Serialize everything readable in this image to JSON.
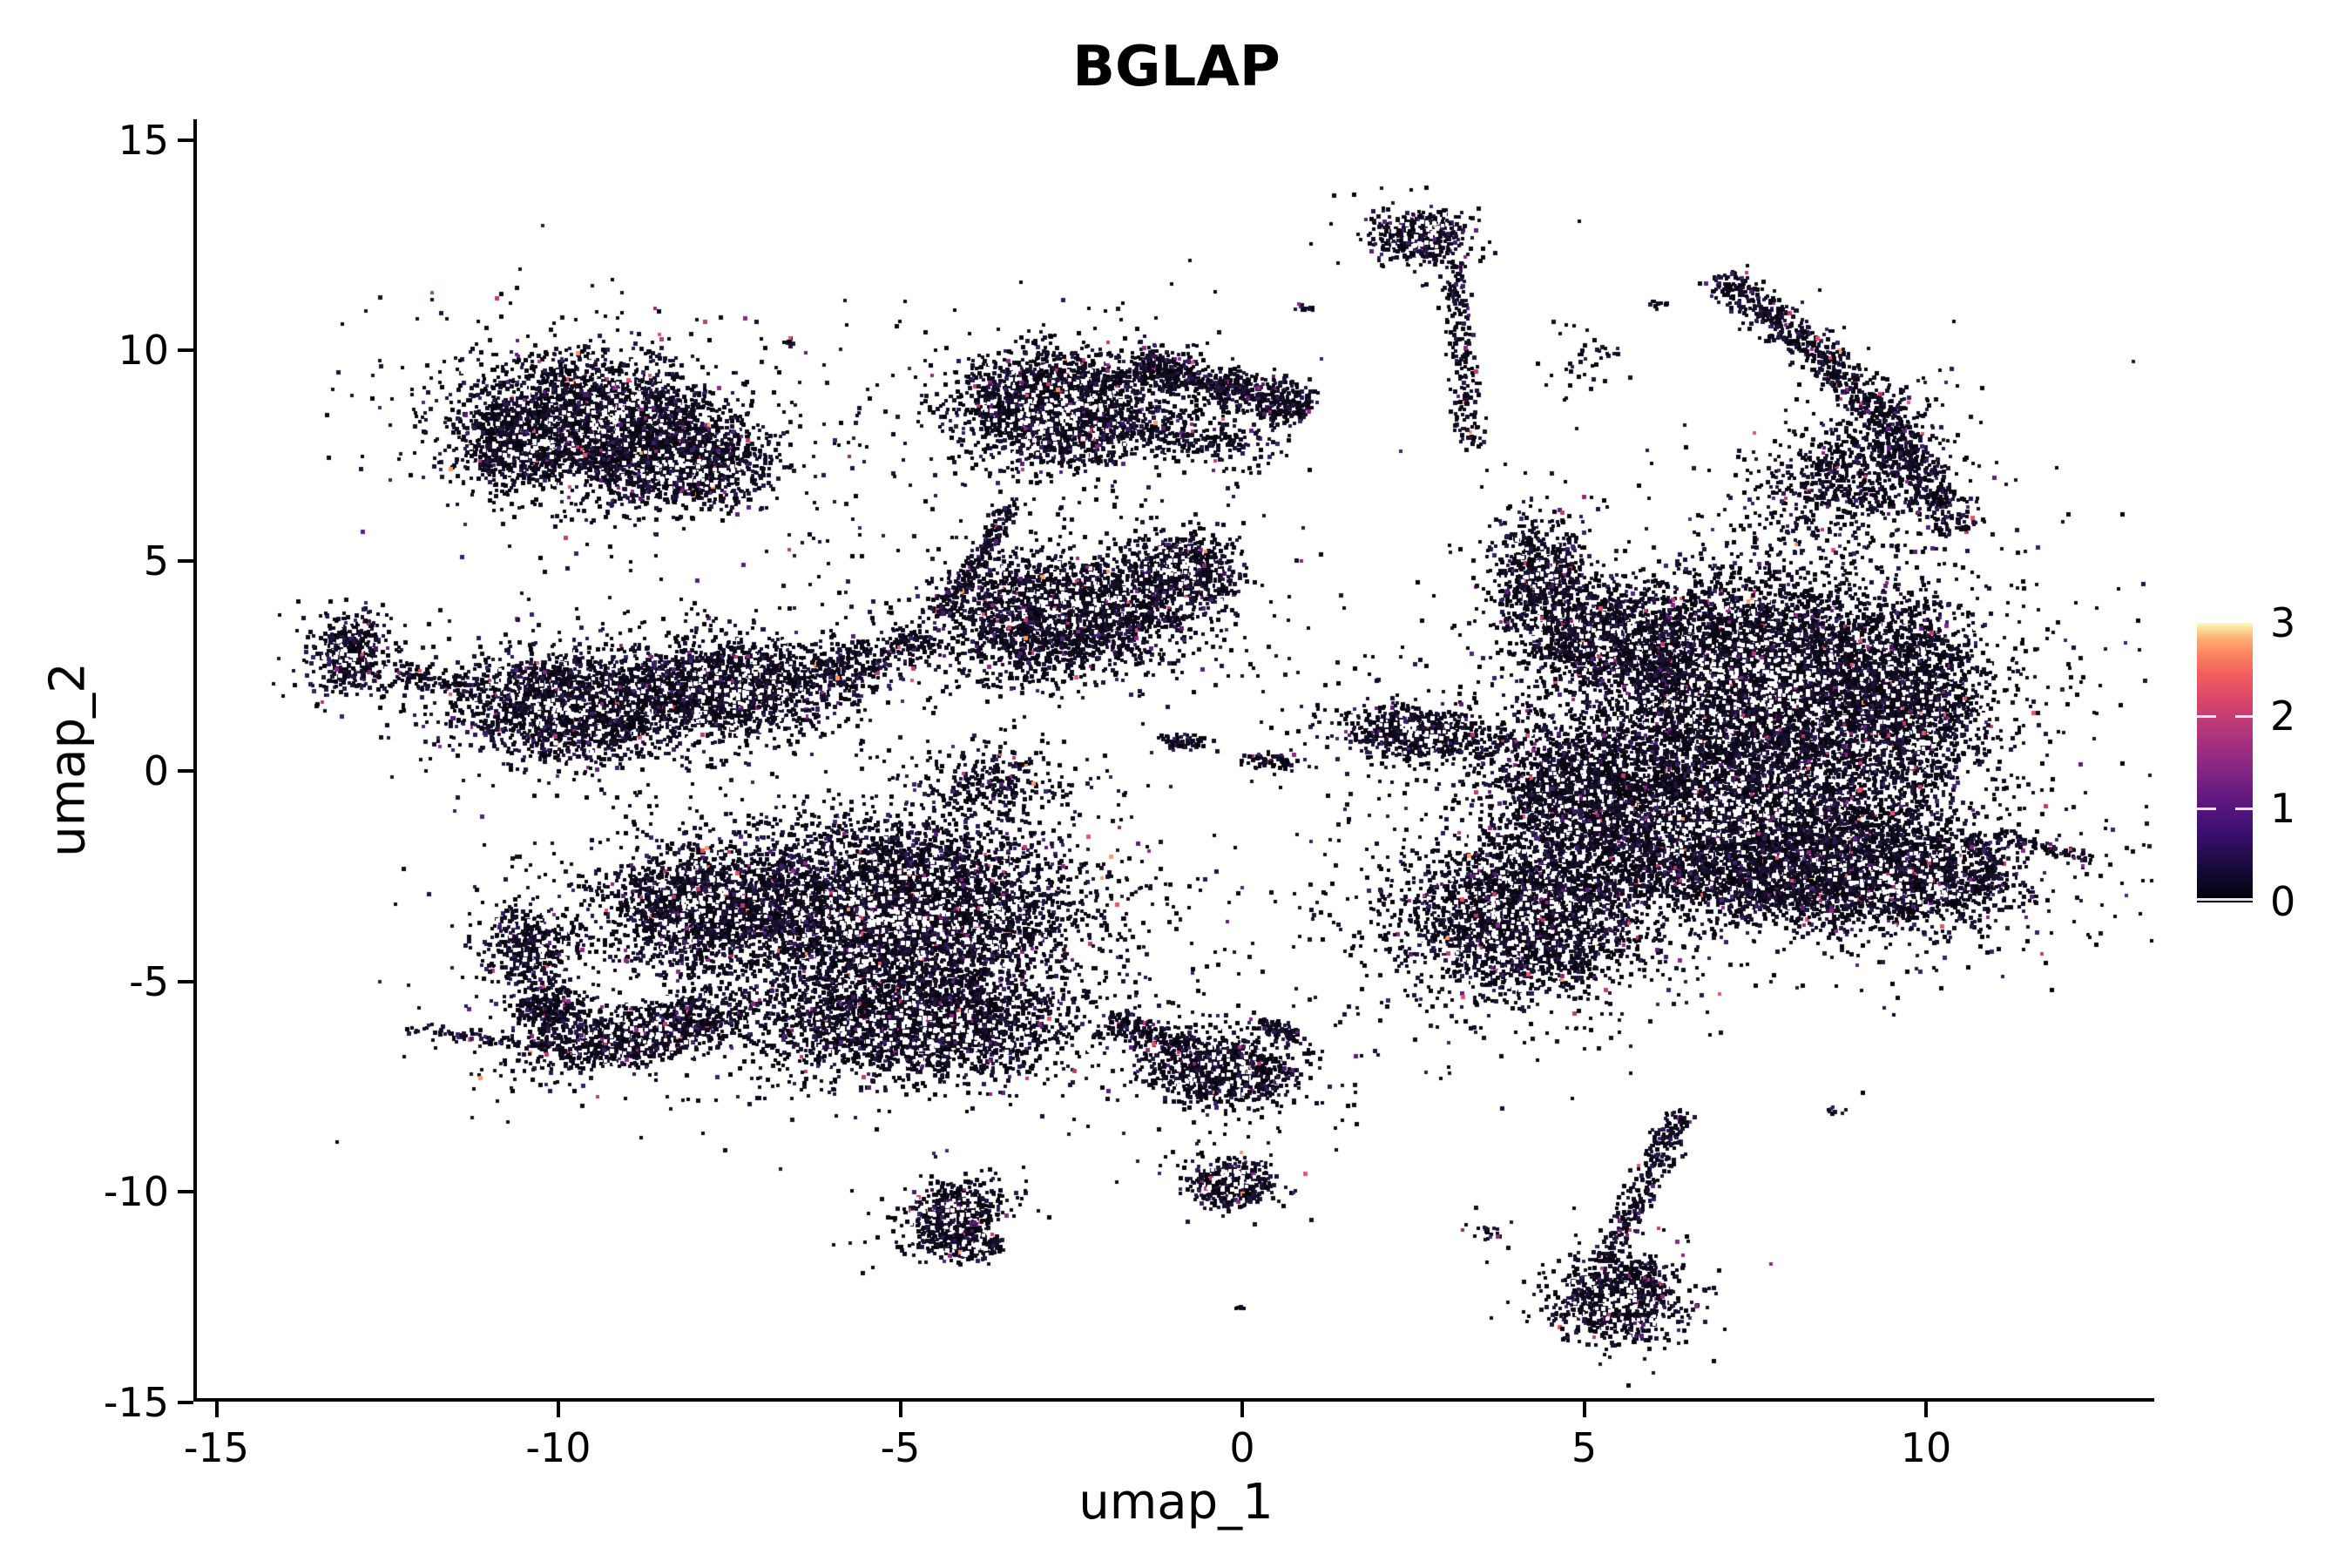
{
  "title": "BGLAP",
  "axes": {
    "xlabel": "umap_1",
    "ylabel": "umap_2",
    "x_ticks": [
      -15,
      -10,
      -5,
      0,
      5,
      10
    ],
    "y_ticks": [
      15,
      10,
      5,
      0,
      -5,
      -10,
      -15
    ]
  },
  "colorbar": {
    "tick_labels": [
      3,
      2,
      1,
      0
    ],
    "tick_mark_values": [
      0,
      1,
      2
    ],
    "gradient_stops": [
      {
        "v": 0.0,
        "c": "#000004"
      },
      {
        "v": 0.08,
        "c": "#0d0829"
      },
      {
        "v": 0.16,
        "c": "#210c4a"
      },
      {
        "v": 0.25,
        "c": "#3a0f70"
      },
      {
        "v": 0.34,
        "c": "#57157e"
      },
      {
        "v": 0.42,
        "c": "#721f81"
      },
      {
        "v": 0.5,
        "c": "#8c2981"
      },
      {
        "v": 0.58,
        "c": "#a8327d"
      },
      {
        "v": 0.66,
        "c": "#c43c75"
      },
      {
        "v": 0.74,
        "c": "#de4968"
      },
      {
        "v": 0.82,
        "c": "#f1605d"
      },
      {
        "v": 0.89,
        "c": "#fb8661"
      },
      {
        "v": 0.94,
        "c": "#fcab6f"
      },
      {
        "v": 0.98,
        "c": "#fcdf9c"
      },
      {
        "v": 1.0,
        "c": "#fcfdbf"
      }
    ]
  },
  "chart_data": {
    "type": "scatter",
    "title": "BGLAP",
    "xlabel": "umap_1",
    "ylabel": "umap_2",
    "xlim": [
      -15.5,
      13.3
    ],
    "ylim": [
      -15.1,
      15.5
    ],
    "x_ticks": [
      -15,
      -10,
      -5,
      0,
      5,
      10
    ],
    "y_ticks": [
      15,
      10,
      5,
      0,
      -5,
      -10,
      -15
    ],
    "grid": false,
    "legend_position": "right",
    "colorbar": {
      "label": "",
      "range": [
        0,
        3
      ],
      "tick_labels": [
        0,
        1,
        2,
        3
      ],
      "colormap": "magma"
    },
    "point_colors": [
      {
        "c": "#04020b",
        "w": 0.2
      },
      {
        "c": "#0a0614",
        "w": 0.2
      },
      {
        "c": "#0e0a1c",
        "w": 0.16
      },
      {
        "c": "#140e26",
        "w": 0.13
      },
      {
        "c": "#19112e",
        "w": 0.11
      },
      {
        "c": "#1f1538",
        "w": 0.08
      },
      {
        "c": "#2a1a4e",
        "w": 0.05
      },
      {
        "c": "#3a2166",
        "w": 0.03
      },
      {
        "c": "#55217a",
        "w": 0.018
      },
      {
        "c": "#8c2981",
        "w": 0.01
      },
      {
        "c": "#c03b6e",
        "w": 0.006
      },
      {
        "c": "#e4556a",
        "w": 0.004
      },
      {
        "c": "#fb9b62",
        "w": 0.002
      }
    ],
    "pinhole_ratio": 0.1,
    "halo": {
      "ratio": 0.13,
      "spread": 2.0,
      "min_n": 400
    },
    "clusters": [
      {
        "t": "g",
        "x": -9.4,
        "y": 8.35,
        "rx": 1.55,
        "ry": 1.25,
        "rot": -10,
        "n": 2600,
        "d": 1
      },
      {
        "t": "g",
        "x": -8.2,
        "y": 7.3,
        "rx": 1.05,
        "ry": 0.9,
        "rot": 0,
        "n": 1200,
        "d": 1
      },
      {
        "t": "g",
        "x": -10.55,
        "y": 7.7,
        "rx": 0.8,
        "ry": 0.8,
        "rot": 0,
        "n": 600,
        "d": 1
      },
      {
        "t": "g",
        "x": -2.7,
        "y": 8.6,
        "rx": 1.25,
        "ry": 1.15,
        "rot": 0,
        "n": 2200,
        "d": 1
      },
      {
        "t": "l",
        "x1": -1.6,
        "y1": 9.7,
        "x2": 0.95,
        "y2": 8.55,
        "w": 0.38,
        "n": 700
      },
      {
        "t": "g",
        "x": -0.6,
        "y": 7.9,
        "rx": 1.0,
        "ry": 0.5,
        "rot": -15,
        "n": 230,
        "d": 0
      },
      {
        "t": "g",
        "x": -2.6,
        "y": 3.9,
        "rx": 1.35,
        "ry": 1.0,
        "rot": -8,
        "n": 1800,
        "d": 1
      },
      {
        "t": "g",
        "x": -0.9,
        "y": 4.7,
        "rx": 0.7,
        "ry": 0.85,
        "rot": 0,
        "n": 700,
        "d": 1
      },
      {
        "t": "g",
        "x": -2.9,
        "y": 2.9,
        "rx": 1.7,
        "ry": 0.8,
        "rot": 0,
        "n": 480,
        "d": 0
      },
      {
        "t": "g",
        "x": -0.9,
        "y": 0.7,
        "rx": 0.35,
        "ry": 0.18,
        "rot": 0,
        "n": 70,
        "d": 0
      },
      {
        "t": "g",
        "x": 0.45,
        "y": 0.25,
        "rx": 0.4,
        "ry": 0.18,
        "rot": 0,
        "n": 60,
        "d": 0
      },
      {
        "t": "l",
        "x1": -4.4,
        "y1": 3.7,
        "x2": -3.3,
        "y2": 6.4,
        "w": 0.14,
        "n": 210
      },
      {
        "t": "g",
        "x": -13.0,
        "y": 2.75,
        "rx": 0.5,
        "ry": 0.8,
        "rot": 0,
        "n": 420,
        "d": 1
      },
      {
        "t": "l",
        "x1": -12.4,
        "y1": 2.3,
        "x2": -11.1,
        "y2": 1.95,
        "w": 0.22,
        "n": 110
      },
      {
        "t": "g",
        "x": -9.8,
        "y": 1.55,
        "rx": 1.35,
        "ry": 1.05,
        "rot": 0,
        "n": 1900,
        "d": 1
      },
      {
        "t": "g",
        "x": -7.55,
        "y": 1.95,
        "rx": 1.6,
        "ry": 1.0,
        "rot": 8,
        "n": 1700,
        "d": 1
      },
      {
        "t": "l",
        "x1": -6.1,
        "y1": 2.3,
        "x2": -4.6,
        "y2": 3.2,
        "w": 0.42,
        "n": 240
      },
      {
        "t": "g",
        "x": -5.1,
        "y": -3.4,
        "rx": 2.3,
        "ry": 1.8,
        "rot": 0,
        "n": 5200,
        "d": 1
      },
      {
        "t": "g",
        "x": -7.9,
        "y": -3.2,
        "rx": 1.25,
        "ry": 1.15,
        "rot": 0,
        "n": 1600,
        "d": 1
      },
      {
        "t": "g",
        "x": -8.7,
        "y": -6.2,
        "rx": 1.5,
        "ry": 0.6,
        "rot": 20,
        "n": 1100,
        "d": 1
      },
      {
        "t": "g",
        "x": -4.7,
        "y": -6.1,
        "rx": 1.9,
        "ry": 1.0,
        "rot": 0,
        "n": 2100,
        "d": 1
      },
      {
        "t": "g",
        "x": -10.4,
        "y": -4.2,
        "rx": 0.6,
        "ry": 0.8,
        "rot": 0,
        "n": 420,
        "d": 1
      },
      {
        "t": "g",
        "x": -10.1,
        "y": -5.7,
        "rx": 0.5,
        "ry": 0.55,
        "rot": 0,
        "n": 260,
        "d": 0
      },
      {
        "t": "l",
        "x1": -12.2,
        "y1": -6.15,
        "x2": -9.9,
        "y2": -6.6,
        "w": 0.12,
        "n": 100
      },
      {
        "t": "g",
        "x": -3.6,
        "y": -0.3,
        "rx": 1.0,
        "ry": 0.8,
        "rot": 0,
        "n": 280,
        "d": 0
      },
      {
        "t": "g",
        "x": -0.3,
        "y": -7.1,
        "rx": 0.95,
        "ry": 0.7,
        "rot": -12,
        "n": 900,
        "d": 1
      },
      {
        "t": "l",
        "x1": -1.9,
        "y1": -5.9,
        "x2": -0.8,
        "y2": -6.6,
        "w": 0.3,
        "n": 150
      },
      {
        "t": "l",
        "x1": 0.3,
        "y1": -6.0,
        "x2": 0.85,
        "y2": -6.35,
        "w": 0.2,
        "n": 80
      },
      {
        "t": "g",
        "x": -0.15,
        "y": -9.8,
        "rx": 0.5,
        "ry": 0.48,
        "rot": 0,
        "n": 430,
        "d": 1
      },
      {
        "t": "g",
        "x": 0.0,
        "y": -12.75,
        "rx": 0.1,
        "ry": 0.08,
        "rot": 0,
        "n": 6,
        "d": 0
      },
      {
        "t": "g",
        "x": -4.25,
        "y": -10.55,
        "rx": 0.55,
        "ry": 0.75,
        "rot": -35,
        "n": 500,
        "d": 1
      },
      {
        "t": "g",
        "x": -3.95,
        "y": -11.3,
        "rx": 0.35,
        "ry": 0.3,
        "rot": 0,
        "n": 250,
        "d": 1
      },
      {
        "t": "g",
        "x": 2.6,
        "y": 12.7,
        "rx": 0.55,
        "ry": 0.5,
        "rot": 0,
        "n": 520,
        "d": 1
      },
      {
        "t": "l",
        "x1": 3.1,
        "y1": 12.1,
        "x2": 3.35,
        "y2": 7.7,
        "w": 0.18,
        "n": 210
      },
      {
        "t": "g",
        "x": 6.1,
        "y": 11.1,
        "rx": 0.16,
        "ry": 0.1,
        "rot": 0,
        "n": 10,
        "d": 0
      },
      {
        "t": "g",
        "x": 5.0,
        "y": 9.7,
        "rx": 0.5,
        "ry": 0.8,
        "rot": 0,
        "n": 40,
        "d": 0
      },
      {
        "t": "l",
        "x1": 7.0,
        "y1": 11.8,
        "x2": 9.2,
        "y2": 8.8,
        "w": 0.32,
        "n": 500
      },
      {
        "t": "l",
        "x1": 9.2,
        "y1": 8.8,
        "x2": 10.5,
        "y2": 5.7,
        "w": 0.34,
        "n": 460
      },
      {
        "t": "g",
        "x": 8.9,
        "y": 7.0,
        "rx": 1.1,
        "ry": 1.7,
        "rot": -35,
        "n": 700,
        "d": 0
      },
      {
        "t": "g",
        "x": 7.6,
        "y": 2.2,
        "rx": 2.3,
        "ry": 2.0,
        "rot": 0,
        "n": 5500,
        "d": 1
      },
      {
        "t": "g",
        "x": 7.0,
        "y": -1.2,
        "rx": 2.4,
        "ry": 1.7,
        "rot": 0,
        "n": 4500,
        "d": 1
      },
      {
        "t": "g",
        "x": 4.35,
        "y": 4.6,
        "rx": 0.55,
        "ry": 1.2,
        "rot": 0,
        "n": 650,
        "d": 1
      },
      {
        "t": "g",
        "x": 5.3,
        "y": 3.2,
        "rx": 1.0,
        "ry": 1.0,
        "rot": 0,
        "n": 900,
        "d": 1
      },
      {
        "t": "g",
        "x": 2.55,
        "y": 0.9,
        "rx": 0.95,
        "ry": 0.5,
        "rot": -8,
        "n": 700,
        "d": 1
      },
      {
        "t": "g",
        "x": 4.9,
        "y": -0.4,
        "rx": 1.1,
        "ry": 1.3,
        "rot": 0,
        "n": 1200,
        "d": 1
      },
      {
        "t": "g",
        "x": 4.15,
        "y": -3.5,
        "rx": 1.5,
        "ry": 1.6,
        "rot": 0,
        "n": 2600,
        "d": 1
      },
      {
        "t": "g",
        "x": 9.7,
        "y": 1.5,
        "rx": 1.0,
        "ry": 2.2,
        "rot": 0,
        "n": 1400,
        "d": 1
      },
      {
        "t": "g",
        "x": 7.8,
        "y": -2.6,
        "rx": 1.3,
        "ry": 0.9,
        "rot": 0,
        "n": 900,
        "d": 1
      },
      {
        "t": "g",
        "x": 9.6,
        "y": -2.5,
        "rx": 1.5,
        "ry": 1.1,
        "rot": -5,
        "n": 1700,
        "d": 1
      },
      {
        "t": "l",
        "x1": 10.6,
        "y1": -1.6,
        "x2": 11.05,
        "y2": -2.2,
        "w": 0.12,
        "n": 60
      },
      {
        "t": "l",
        "x1": 11.0,
        "y1": -2.3,
        "x2": 10.75,
        "y2": -2.9,
        "w": 0.12,
        "n": 40
      },
      {
        "t": "l",
        "x1": 10.9,
        "y1": -1.5,
        "x2": 12.25,
        "y2": -2.05,
        "w": 0.15,
        "n": 80
      },
      {
        "t": "g",
        "x": 12.3,
        "y": -2.1,
        "rx": 0.16,
        "ry": 0.14,
        "rot": 0,
        "n": 12,
        "d": 0
      },
      {
        "t": "g",
        "x": 8.7,
        "y": -8.05,
        "rx": 0.16,
        "ry": 0.1,
        "rot": 0,
        "n": 8,
        "d": 0
      },
      {
        "t": "l",
        "x1": 6.45,
        "y1": -8.1,
        "x2": 5.35,
        "y2": -11.6,
        "w": 0.22,
        "n": 280
      },
      {
        "t": "g",
        "x": 5.5,
        "y": -12.55,
        "rx": 0.75,
        "ry": 0.8,
        "rot": 0,
        "n": 900,
        "d": 1
      },
      {
        "t": "g",
        "x": 3.6,
        "y": -10.9,
        "rx": 0.35,
        "ry": 0.28,
        "rot": 0,
        "n": 22,
        "d": 0
      },
      {
        "t": "g",
        "x": 0.9,
        "y": 11.0,
        "rx": 0.22,
        "ry": 0.1,
        "rot": 0,
        "n": 14,
        "d": 0
      },
      {
        "t": "g",
        "x": -6.6,
        "y": 10.15,
        "rx": 0.16,
        "ry": 0.12,
        "rot": 0,
        "n": 8,
        "d": 0
      }
    ]
  }
}
